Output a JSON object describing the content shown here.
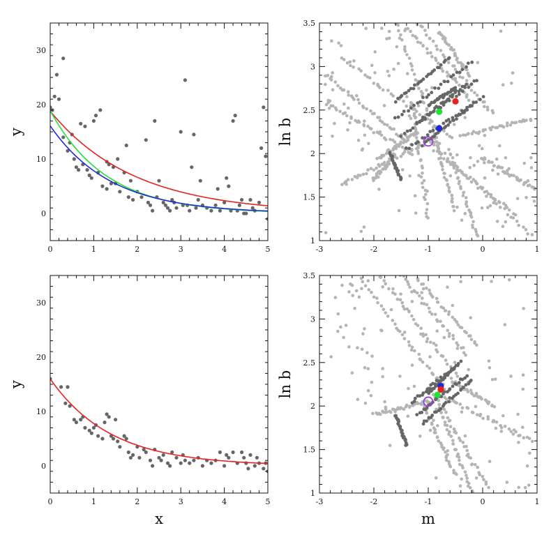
{
  "chart_data": [
    {
      "panel": "top-left",
      "type": "scatter",
      "xlabel": "",
      "ylabel": "y",
      "xlim": [
        0,
        5
      ],
      "ylim": [
        -5,
        35
      ],
      "xticks": [
        0,
        1,
        2,
        3,
        4,
        5
      ],
      "yticks": [
        0,
        10,
        20,
        30
      ],
      "points": [
        [
          0.0,
          19.5
        ],
        [
          0.05,
          19.0
        ],
        [
          0.1,
          21.5
        ],
        [
          0.15,
          25.5
        ],
        [
          0.2,
          21.0
        ],
        [
          0.3,
          28.5
        ],
        [
          0.3,
          14.0
        ],
        [
          0.4,
          11.5
        ],
        [
          0.45,
          13.0
        ],
        [
          0.5,
          14.5
        ],
        [
          0.55,
          10.0
        ],
        [
          0.6,
          8.5
        ],
        [
          0.65,
          8.0
        ],
        [
          0.7,
          16.5
        ],
        [
          0.75,
          9.0
        ],
        [
          0.8,
          16.0
        ],
        [
          0.85,
          8.0
        ],
        [
          0.9,
          7.0
        ],
        [
          0.95,
          6.5
        ],
        [
          1.0,
          17.0
        ],
        [
          1.05,
          18.0
        ],
        [
          1.1,
          7.5
        ],
        [
          1.15,
          19.0
        ],
        [
          1.2,
          5.0
        ],
        [
          1.3,
          4.5
        ],
        [
          1.3,
          9.5
        ],
        [
          1.35,
          9.0
        ],
        [
          1.4,
          5.5
        ],
        [
          1.45,
          8.5
        ],
        [
          1.5,
          5.5
        ],
        [
          1.55,
          10.0
        ],
        [
          1.6,
          4.0
        ],
        [
          1.7,
          7.5
        ],
        [
          1.75,
          12.5
        ],
        [
          1.8,
          3.0
        ],
        [
          1.85,
          6.0
        ],
        [
          1.9,
          2.5
        ],
        [
          2.0,
          4.0
        ],
        [
          2.1,
          3.0
        ],
        [
          2.2,
          13.5
        ],
        [
          2.25,
          2.0
        ],
        [
          2.3,
          1.5
        ],
        [
          2.35,
          0.5
        ],
        [
          2.4,
          17.0
        ],
        [
          2.45,
          3.0
        ],
        [
          2.5,
          6.0
        ],
        [
          2.6,
          2.0
        ],
        [
          2.65,
          1.5
        ],
        [
          2.7,
          1.0
        ],
        [
          2.75,
          0.5
        ],
        [
          2.8,
          2.5
        ],
        [
          2.85,
          2.0
        ],
        [
          2.9,
          1.0
        ],
        [
          3.0,
          15.0
        ],
        [
          3.05,
          1.5
        ],
        [
          3.1,
          24.5
        ],
        [
          3.15,
          1.5
        ],
        [
          3.2,
          0.5
        ],
        [
          3.25,
          8.5
        ],
        [
          3.3,
          14.5
        ],
        [
          3.35,
          1.0
        ],
        [
          3.4,
          2.5
        ],
        [
          3.45,
          6.0
        ],
        [
          3.5,
          1.5
        ],
        [
          3.6,
          1.0
        ],
        [
          3.7,
          0.5
        ],
        [
          3.8,
          1.5
        ],
        [
          3.85,
          4.5
        ],
        [
          3.9,
          0.5
        ],
        [
          4.0,
          2.0
        ],
        [
          4.05,
          6.5
        ],
        [
          4.1,
          5.0
        ],
        [
          4.15,
          0.5
        ],
        [
          4.2,
          17.0
        ],
        [
          4.25,
          18.0
        ],
        [
          4.3,
          0.5
        ],
        [
          4.35,
          1.5
        ],
        [
          4.4,
          2.5
        ],
        [
          4.45,
          0.0
        ],
        [
          4.5,
          0.0
        ],
        [
          4.6,
          2.5
        ],
        [
          4.65,
          1.0
        ],
        [
          4.7,
          0.5
        ],
        [
          4.8,
          2.0
        ],
        [
          4.85,
          12.0
        ],
        [
          4.9,
          19.5
        ],
        [
          4.95,
          10.5
        ],
        [
          5.0,
          -1.0
        ]
      ],
      "curves": [
        {
          "color": "#e8211e",
          "a": 18.8,
          "k": 0.52
        },
        {
          "color": "#22e03a",
          "a": 18.9,
          "k": 0.78
        },
        {
          "color": "#2029d8",
          "a": 16.1,
          "k": 0.72
        }
      ]
    },
    {
      "panel": "top-right",
      "type": "scatter",
      "xlabel": "",
      "ylabel": "ln b",
      "xlim": [
        -3,
        1
      ],
      "ylim": [
        1,
        3.5
      ],
      "xticks": [
        -3,
        -2,
        -1,
        0,
        1
      ],
      "yticks": [
        1,
        1.5,
        2,
        2.5,
        3,
        3.5
      ],
      "light_cloud": {
        "color": "#b4b4b4",
        "streaks": [
          [
            [
              -2.9,
              2.9
            ],
            [
              -1.4,
              2.15
            ]
          ],
          [
            [
              -2.8,
              2.55
            ],
            [
              -1.3,
              2.0
            ]
          ],
          [
            [
              -2.6,
              3.1
            ],
            [
              -0.6,
              2.2
            ]
          ],
          [
            [
              -1.6,
              3.5
            ],
            [
              -0.8,
              2.1
            ]
          ],
          [
            [
              -1.4,
              3.45
            ],
            [
              -0.2,
              2.6
            ]
          ],
          [
            [
              -1.2,
              3.5
            ],
            [
              0.2,
              2.45
            ]
          ],
          [
            [
              -0.8,
              3.4
            ],
            [
              -0.25,
              2.9
            ]
          ],
          [
            [
              -0.9,
              2.05
            ],
            [
              0.6,
              1.3
            ]
          ],
          [
            [
              -1.0,
              2.15
            ],
            [
              0.9,
              1.05
            ]
          ],
          [
            [
              -0.6,
              2.0
            ],
            [
              -0.1,
              1.05
            ]
          ],
          [
            [
              -0.9,
              2.2
            ],
            [
              -0.5,
              1.35
            ]
          ],
          [
            [
              0.0,
              1.95
            ],
            [
              0.95,
              1.6
            ]
          ],
          [
            [
              -1.2,
              2.25
            ],
            [
              -1.9,
              1.95
            ]
          ],
          [
            [
              -1.6,
              2.0
            ],
            [
              -2.0,
              1.7
            ]
          ],
          [
            [
              -0.4,
              2.2
            ],
            [
              0.9,
              2.4
            ]
          ],
          [
            [
              -1.1,
              2.1
            ],
            [
              -2.6,
              1.65
            ]
          ],
          [
            [
              -1.3,
              2.6
            ],
            [
              -1.0,
              1.25
            ]
          ]
        ],
        "scatter_range": {
          "x": [
            -2.9,
            0.95
          ],
          "y": [
            1.05,
            3.45
          ]
        }
      },
      "dark_cloud": {
        "color": "#666666",
        "streaks": [
          [
            [
              -1.6,
              2.4
            ],
            [
              -0.2,
              3.05
            ]
          ],
          [
            [
              -1.5,
              2.2
            ],
            [
              -0.1,
              2.85
            ]
          ],
          [
            [
              -1.4,
              2.05
            ],
            [
              0.0,
              2.65
            ]
          ],
          [
            [
              -1.2,
              2.35
            ],
            [
              -0.3,
              2.8
            ]
          ],
          [
            [
              -1.1,
              2.1
            ],
            [
              -0.2,
              2.55
            ]
          ],
          [
            [
              -1.6,
              2.6
            ],
            [
              -0.6,
              3.1
            ]
          ],
          [
            [
              -1.7,
              2.0
            ],
            [
              -1.5,
              1.7
            ]
          ],
          [
            [
              -1.0,
              2.55
            ],
            [
              -0.5,
              2.75
            ]
          ]
        ]
      },
      "markers": [
        {
          "name": "red",
          "x": -0.5,
          "y": 2.6,
          "color": "#e8211e"
        },
        {
          "name": "green",
          "x": -0.8,
          "y": 2.48,
          "color": "#22e03a"
        },
        {
          "name": "blue",
          "x": -0.8,
          "y": 2.29,
          "color": "#2029d8"
        },
        {
          "name": "true",
          "x": -1.0,
          "y": 2.14,
          "color": "#9b3fd6",
          "open": true
        }
      ]
    },
    {
      "panel": "bottom-left",
      "type": "scatter",
      "xlabel": "x",
      "ylabel": "y",
      "xlim": [
        0,
        5
      ],
      "ylim": [
        -5,
        35
      ],
      "xticks": [
        0,
        1,
        2,
        3,
        4,
        5
      ],
      "yticks": [
        0,
        10,
        20,
        30
      ],
      "points": [
        [
          0.0,
          16.0
        ],
        [
          0.25,
          14.5
        ],
        [
          0.35,
          11.5
        ],
        [
          0.4,
          14.5
        ],
        [
          0.45,
          11.0
        ],
        [
          0.55,
          8.5
        ],
        [
          0.6,
          8.0
        ],
        [
          0.7,
          8.5
        ],
        [
          0.75,
          9.0
        ],
        [
          0.8,
          7.0
        ],
        [
          0.9,
          6.5
        ],
        [
          0.95,
          6.0
        ],
        [
          1.0,
          7.0
        ],
        [
          1.05,
          7.5
        ],
        [
          1.1,
          5.5
        ],
        [
          1.2,
          5.0
        ],
        [
          1.25,
          8.0
        ],
        [
          1.3,
          9.5
        ],
        [
          1.35,
          9.0
        ],
        [
          1.4,
          5.5
        ],
        [
          1.45,
          5.0
        ],
        [
          1.5,
          8.5
        ],
        [
          1.55,
          4.5
        ],
        [
          1.6,
          3.5
        ],
        [
          1.7,
          5.5
        ],
        [
          1.75,
          5.0
        ],
        [
          1.8,
          2.5
        ],
        [
          1.85,
          1.5
        ],
        [
          1.9,
          2.0
        ],
        [
          2.0,
          3.5
        ],
        [
          2.05,
          1.5
        ],
        [
          2.15,
          3.0
        ],
        [
          2.2,
          2.5
        ],
        [
          2.3,
          1.0
        ],
        [
          2.35,
          0.0
        ],
        [
          2.4,
          3.0
        ],
        [
          2.5,
          1.5
        ],
        [
          2.55,
          1.0
        ],
        [
          2.6,
          2.0
        ],
        [
          2.7,
          0.5
        ],
        [
          2.75,
          0.0
        ],
        [
          2.8,
          2.5
        ],
        [
          2.9,
          1.5
        ],
        [
          3.0,
          0.5
        ],
        [
          3.05,
          2.0
        ],
        [
          3.1,
          1.0
        ],
        [
          3.2,
          0.5
        ],
        [
          3.3,
          1.0
        ],
        [
          3.4,
          1.5
        ],
        [
          3.5,
          0.0
        ],
        [
          3.6,
          1.0
        ],
        [
          3.7,
          0.5
        ],
        [
          3.8,
          1.0
        ],
        [
          3.9,
          2.5
        ],
        [
          4.0,
          0.0
        ],
        [
          4.05,
          2.0
        ],
        [
          4.1,
          1.5
        ],
        [
          4.2,
          2.5
        ],
        [
          4.3,
          0.5
        ],
        [
          4.4,
          2.5
        ],
        [
          4.45,
          1.5
        ],
        [
          4.5,
          0.5
        ],
        [
          4.55,
          -0.5
        ],
        [
          4.6,
          2.0
        ],
        [
          4.7,
          0.0
        ],
        [
          4.75,
          1.5
        ],
        [
          4.8,
          0.5
        ],
        [
          4.9,
          -0.5
        ],
        [
          4.95,
          0.5
        ],
        [
          5.0,
          -1.0
        ]
      ],
      "curves": [
        {
          "color": "#e8211e",
          "a": 16.0,
          "k": 0.72
        }
      ]
    },
    {
      "panel": "bottom-right",
      "type": "scatter",
      "xlabel": "m",
      "ylabel": "ln b",
      "xlim": [
        -3,
        1
      ],
      "ylim": [
        1,
        3.5
      ],
      "xticks": [
        -3,
        -2,
        -1,
        0,
        1
      ],
      "yticks": [
        1,
        1.5,
        2,
        2.5,
        3,
        3.5
      ],
      "light_cloud": {
        "color": "#b4b4b4",
        "streaks": [
          [
            [
              -2.3,
              3.5
            ],
            [
              -0.7,
              2.2
            ]
          ],
          [
            [
              -1.9,
              3.5
            ],
            [
              -0.4,
              2.3
            ]
          ],
          [
            [
              -1.5,
              3.5
            ],
            [
              -0.3,
              2.6
            ]
          ],
          [
            [
              -1.2,
              3.45
            ],
            [
              -0.1,
              2.7
            ]
          ],
          [
            [
              -0.9,
              2.15
            ],
            [
              0.1,
              1.05
            ]
          ],
          [
            [
              -0.7,
              2.1
            ],
            [
              0.9,
              1.6
            ]
          ],
          [
            [
              -0.8,
              2.0
            ],
            [
              -0.2,
              1.0
            ]
          ],
          [
            [
              -1.1,
              2.0
            ],
            [
              -0.5,
              1.2
            ]
          ],
          [
            [
              -2.0,
              1.9
            ],
            [
              -1.0,
              2.05
            ]
          ],
          [
            [
              -0.6,
              2.3
            ],
            [
              0.2,
              2.0
            ]
          ]
        ],
        "scatter_range": {
          "x": [
            -2.8,
            0.95
          ],
          "y": [
            1.05,
            3.45
          ]
        }
      },
      "dark_cloud": {
        "color": "#666666",
        "streaks": [
          [
            [
              -1.3,
              2.05
            ],
            [
              -0.4,
              2.5
            ]
          ],
          [
            [
              -1.2,
              1.9
            ],
            [
              -0.3,
              2.35
            ]
          ],
          [
            [
              -1.1,
              1.8
            ],
            [
              -0.2,
              2.3
            ]
          ],
          [
            [
              -1.0,
              2.15
            ],
            [
              -0.5,
              2.45
            ]
          ],
          [
            [
              -1.6,
              1.9
            ],
            [
              -1.4,
              1.55
            ]
          ]
        ]
      },
      "markers": [
        {
          "name": "blue",
          "x": -0.77,
          "y": 2.23,
          "color": "#2029d8"
        },
        {
          "name": "red",
          "x": -0.77,
          "y": 2.19,
          "color": "#e8211e"
        },
        {
          "name": "green",
          "x": -0.83,
          "y": 2.13,
          "color": "#22e03a"
        },
        {
          "name": "true",
          "x": -1.0,
          "y": 2.05,
          "color": "#9b3fd6",
          "open": true
        }
      ]
    }
  ]
}
